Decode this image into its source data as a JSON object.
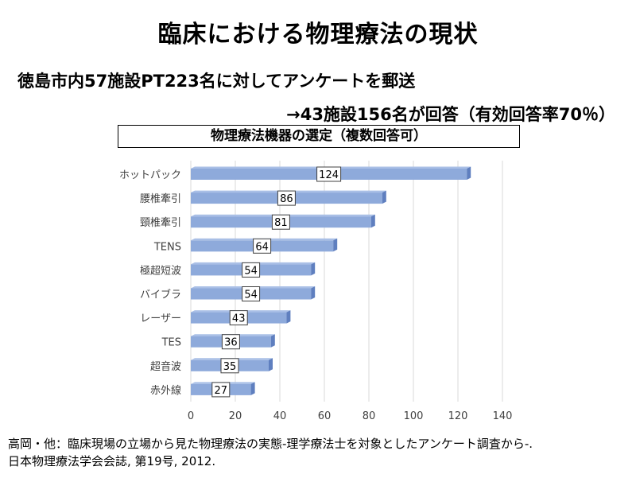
{
  "title": "臨床における物理療法の現状",
  "subtitle1": "徳島市内57施設PT223名に対してアンケートを郵送",
  "subtitle2": "→43施設156名が回答（有効回答率70％）",
  "source": {
    "line1": "高岡・他：臨床現場の立場から見た物理療法の実態-理学療法士を対象としたアンケート調査から-.",
    "line2": "日本物理療法学会会誌, 第19号, 2012."
  },
  "chart_data": {
    "type": "bar",
    "orientation": "horizontal",
    "title": "物理療法機器の選定（複数回答可）",
    "categories": [
      "ホットパック",
      "腰椎牽引",
      "頸椎牽引",
      "TENS",
      "極超短波",
      "バイブラ",
      "レーザー",
      "TES",
      "超音波",
      "赤外線"
    ],
    "values": [
      124,
      86,
      81,
      64,
      54,
      54,
      43,
      36,
      35,
      27
    ],
    "xlim": [
      0,
      140
    ],
    "xticks": [
      0,
      20,
      40,
      60,
      80,
      100,
      120,
      140
    ],
    "grid": true,
    "data_labels": true,
    "bar_color": "#8eaadb",
    "bar_side_color": "#5f7fbf"
  }
}
